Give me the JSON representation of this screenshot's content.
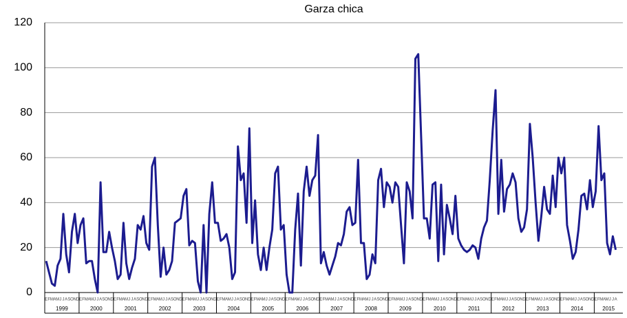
{
  "chart_data": {
    "type": "line",
    "title": "Garza chica",
    "categories": [
      "E",
      "F",
      "M",
      "A",
      "M",
      "J",
      "J",
      "A",
      "S",
      "O",
      "N",
      "D",
      "E",
      "F",
      "M",
      "A",
      "M",
      "J",
      "J",
      "A",
      "S",
      "O",
      "N",
      "D",
      "E",
      "F",
      "M",
      "A",
      "M",
      "J",
      "J",
      "A",
      "S",
      "O",
      "N",
      "D",
      "E",
      "F",
      "M",
      "A",
      "M",
      "J",
      "J",
      "A",
      "S",
      "O",
      "N",
      "D",
      "E",
      "F",
      "M",
      "A",
      "M",
      "J",
      "J",
      "A",
      "S",
      "O",
      "N",
      "D",
      "E",
      "F",
      "M",
      "A",
      "M",
      "J",
      "J",
      "A",
      "S",
      "O",
      "N",
      "D",
      "E",
      "F",
      "M",
      "A",
      "M",
      "J",
      "J",
      "A",
      "S",
      "O",
      "N",
      "D",
      "E",
      "F",
      "M",
      "A",
      "M",
      "J",
      "J",
      "A",
      "S",
      "O",
      "N",
      "D",
      "E",
      "F",
      "M",
      "A",
      "M",
      "J",
      "J",
      "A",
      "S",
      "O",
      "N",
      "D",
      "E",
      "F",
      "M",
      "A",
      "M",
      "J",
      "J",
      "A",
      "S",
      "O",
      "N",
      "D",
      "E",
      "F",
      "M",
      "A",
      "M",
      "J",
      "J",
      "A",
      "S",
      "O",
      "N",
      "D",
      "E",
      "F",
      "M",
      "A",
      "M",
      "J",
      "J",
      "A",
      "S",
      "O",
      "N",
      "D",
      "E",
      "F",
      "M",
      "A",
      "M",
      "J",
      "J",
      "A",
      "S",
      "O",
      "N",
      "D",
      "E",
      "F",
      "M",
      "A",
      "M",
      "J",
      "J",
      "A",
      "S",
      "O",
      "N",
      "D",
      "E",
      "F",
      "M",
      "A",
      "M",
      "J",
      "J",
      "A",
      "S",
      "O",
      "N",
      "D",
      "E",
      "F",
      "M",
      "A",
      "M",
      "J",
      "J",
      "A",
      "S",
      "O",
      "N",
      "D",
      "E",
      "F",
      "M",
      "A",
      "M",
      "J",
      "J",
      "A"
    ],
    "years": [
      "1999",
      "2000",
      "2001",
      "2002",
      "2003",
      "2004",
      "2005",
      "2006",
      "2007",
      "2008",
      "2009",
      "2010",
      "2011",
      "2012",
      "2013",
      "2014",
      "2015"
    ],
    "series": [
      {
        "name": "Garza chica",
        "color": "#1c1c8f",
        "values": [
          14,
          9,
          4,
          3,
          12,
          15,
          35,
          17,
          9,
          27,
          35,
          22,
          30,
          33,
          13,
          14,
          14,
          6,
          0,
          49,
          18,
          18,
          27,
          20,
          14,
          6,
          8,
          31,
          13,
          6,
          11,
          15,
          30,
          28,
          34,
          22,
          19,
          56,
          60,
          30,
          7,
          20,
          8,
          10,
          14,
          31,
          32,
          33,
          43,
          46,
          21,
          23,
          22,
          5,
          0,
          30,
          0,
          35,
          49,
          31,
          31,
          23,
          24,
          26,
          20,
          6,
          9,
          65,
          50,
          53,
          31,
          73,
          22,
          41,
          17,
          10,
          20,
          10,
          20,
          28,
          53,
          56,
          28,
          30,
          8,
          0,
          0,
          28,
          44,
          12,
          45,
          56,
          43,
          50,
          52,
          70,
          13,
          18,
          12,
          8,
          12,
          16,
          22,
          21,
          26,
          36,
          38,
          30,
          31,
          59,
          22,
          22,
          6,
          8,
          17,
          13,
          50,
          55,
          38,
          49,
          47,
          40,
          49,
          47,
          30,
          13,
          49,
          45,
          33,
          104,
          106,
          70,
          33,
          33,
          24,
          48,
          49,
          14,
          48,
          17,
          39,
          33,
          26,
          43,
          24,
          21,
          19,
          18,
          19,
          21,
          20,
          15,
          24,
          29,
          32,
          50,
          72,
          90,
          35,
          59,
          36,
          46,
          48,
          53,
          49,
          33,
          27,
          29,
          37,
          75,
          60,
          40,
          23,
          34,
          47,
          37,
          35,
          52,
          38,
          60,
          53,
          60,
          30,
          23,
          15,
          18,
          28,
          43,
          44,
          37,
          50,
          38,
          45,
          74,
          50,
          53,
          22,
          17,
          25,
          19
        ]
      }
    ],
    "ylim": [
      0,
      120
    ],
    "yticks": [
      0,
      20,
      40,
      60,
      80,
      100,
      120
    ],
    "grid": true
  }
}
